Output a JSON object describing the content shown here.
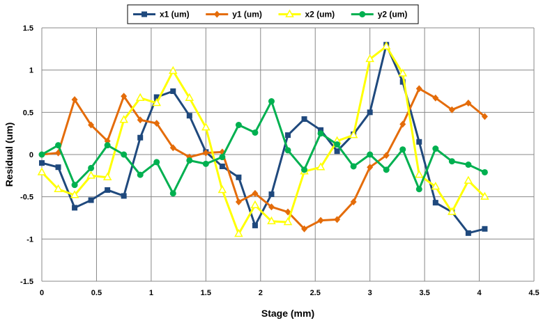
{
  "chart_data": {
    "type": "line",
    "xlabel": "Stage (mm)",
    "ylabel": "Residual (um)",
    "xlim": [
      0,
      4.5
    ],
    "ylim": [
      -1.5,
      1.5
    ],
    "xticks": [
      0,
      0.5,
      1,
      1.5,
      2,
      2.5,
      3,
      3.5,
      4,
      4.5
    ],
    "yticks": [
      -1.5,
      -1,
      -0.5,
      0,
      0.5,
      1,
      1.5
    ],
    "grid": true,
    "legend_position": "top",
    "x": [
      0,
      0.15,
      0.3,
      0.45,
      0.6,
      0.75,
      0.9,
      1.05,
      1.2,
      1.35,
      1.5,
      1.65,
      1.8,
      1.95,
      2.1,
      2.25,
      2.4,
      2.55,
      2.7,
      2.85,
      3.0,
      3.15,
      3.3,
      3.45,
      3.6,
      3.75,
      3.9,
      4.05
    ],
    "series": [
      {
        "name": "x1 (um)",
        "color": "#1F497D",
        "marker": "square",
        "values": [
          -0.1,
          -0.15,
          -0.63,
          -0.54,
          -0.42,
          -0.49,
          0.2,
          0.68,
          0.75,
          0.46,
          0.03,
          -0.14,
          -0.27,
          -0.84,
          -0.47,
          0.23,
          0.42,
          0.29,
          0.04,
          0.24,
          0.5,
          1.3,
          0.86,
          0.15,
          -0.57,
          -0.68,
          -0.93,
          -0.88
        ]
      },
      {
        "name": "y1 (um)",
        "color": "#E46C0A",
        "marker": "diamond",
        "values": [
          0.0,
          0.02,
          0.65,
          0.35,
          0.16,
          0.69,
          0.41,
          0.37,
          0.08,
          -0.03,
          0.02,
          0.03,
          -0.56,
          -0.46,
          -0.62,
          -0.68,
          -0.88,
          -0.78,
          -0.77,
          -0.56,
          -0.15,
          -0.01,
          0.36,
          0.78,
          0.67,
          0.53,
          0.61,
          0.45
        ]
      },
      {
        "name": "x2 (um)",
        "color": "#FFFF00",
        "marker": "triangle",
        "values": [
          -0.21,
          -0.41,
          -0.48,
          -0.25,
          -0.27,
          0.41,
          0.67,
          0.61,
          0.99,
          0.67,
          0.32,
          -0.42,
          -0.94,
          -0.6,
          -0.79,
          -0.8,
          -0.2,
          -0.15,
          0.16,
          0.23,
          1.13,
          1.28,
          0.96,
          -0.24,
          -0.38,
          -0.68,
          -0.31,
          -0.5
        ]
      },
      {
        "name": "y2 (um)",
        "color": "#00B050",
        "marker": "circle",
        "values": [
          0.0,
          0.11,
          -0.36,
          -0.16,
          0.11,
          0.0,
          -0.24,
          -0.09,
          -0.46,
          -0.07,
          -0.11,
          -0.03,
          0.35,
          0.26,
          0.63,
          0.05,
          -0.18,
          0.25,
          0.12,
          -0.14,
          0.0,
          -0.18,
          0.06,
          -0.41,
          0.07,
          -0.08,
          -0.12,
          -0.21
        ]
      }
    ]
  }
}
